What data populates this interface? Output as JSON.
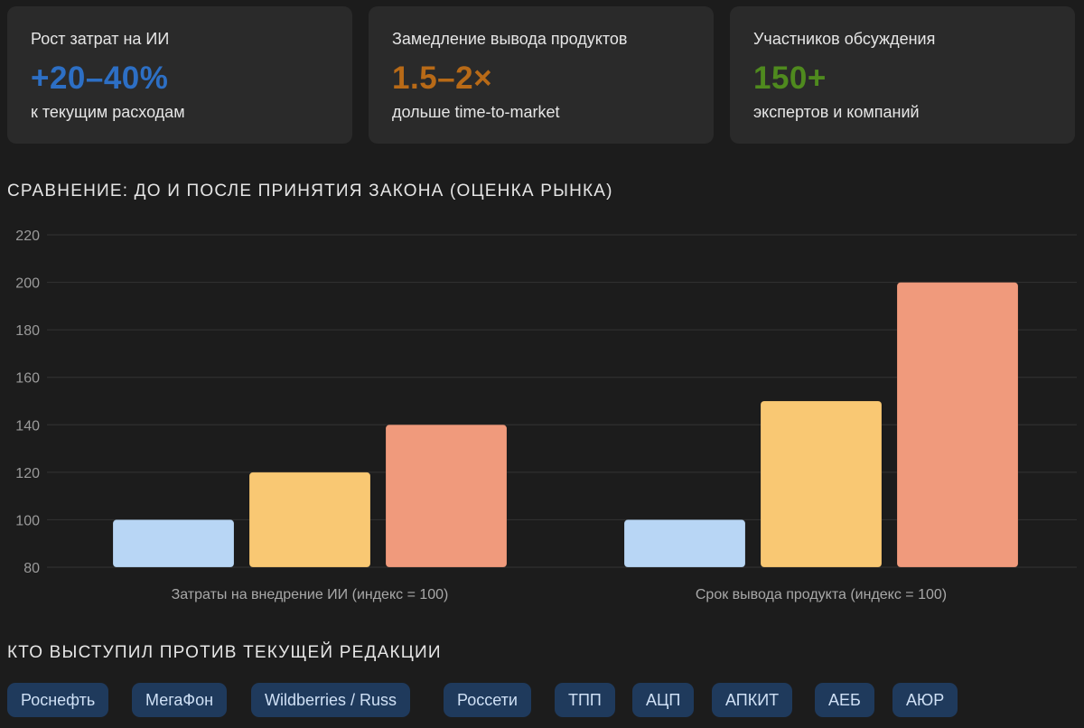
{
  "stats": [
    {
      "label": "Рост затрат на ИИ",
      "value": "+20–40%",
      "sub": "к текущим расходам",
      "color": "#2d6fc4"
    },
    {
      "label": "Замедление вывода продуктов",
      "value": "1.5–2×",
      "sub": "дольше time-to-market",
      "color": "#b86a17"
    },
    {
      "label": "Участников обсуждения",
      "value": "150+",
      "sub": "экспертов и компаний",
      "color": "#4f8a1e"
    }
  ],
  "chart_section_title": "СРАВНЕНИЕ: ДО И ПОСЛЕ ПРИНЯТИЯ ЗАКОНА (ОЦЕНКА РЫНКА)",
  "chart_data": {
    "type": "bar",
    "categories": [
      "Затраты на внедрение ИИ (индекс = 100)",
      "Срок вывода продукта (индекс = 100)"
    ],
    "series": [
      {
        "values": [
          100,
          100
        ],
        "color": "#b8d6f5"
      },
      {
        "values": [
          120,
          150
        ],
        "color": "#f9c873"
      },
      {
        "values": [
          140,
          200
        ],
        "color": "#f09a7c"
      }
    ],
    "ylim": [
      80,
      220
    ],
    "yticks": [
      80,
      100,
      120,
      140,
      160,
      180,
      200,
      220
    ],
    "grid": true,
    "legend": "none"
  },
  "opponents_title": "КТО ВЫСТУПИЛ ПРОТИВ ТЕКУЩЕЙ РЕДАКЦИИ",
  "opponents": [
    "Роснефть",
    "МегаФон",
    "Wildberries / Russ",
    "Россети",
    "ТПП",
    "АЦП",
    "АПКИТ",
    "АЕБ",
    "АЮР"
  ]
}
